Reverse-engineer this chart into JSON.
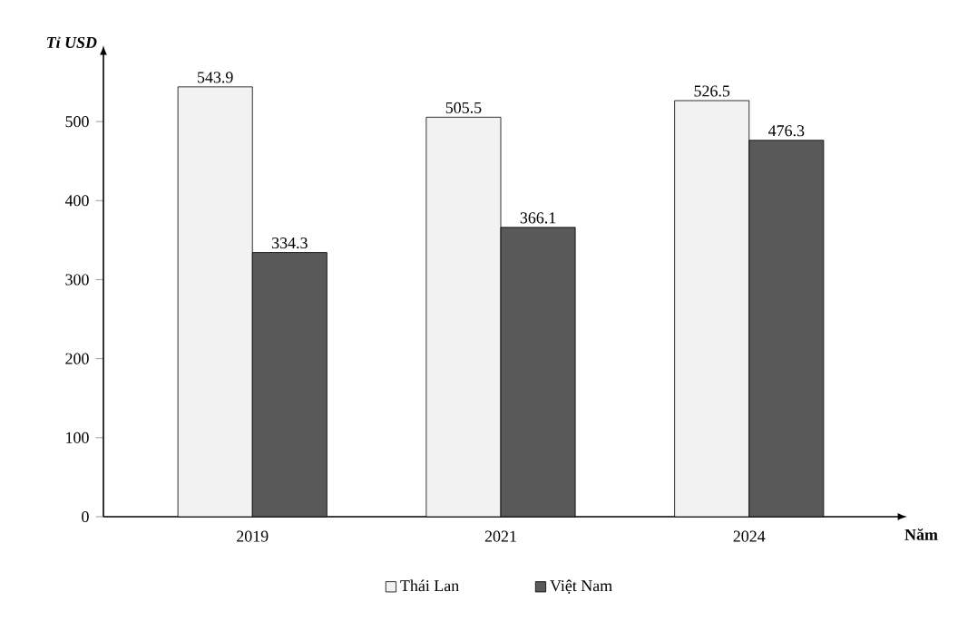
{
  "chart_data": {
    "type": "bar",
    "xlabel": "Năm",
    "ylabel": "Tỉ USD",
    "categories": [
      "2019",
      "2021",
      "2024"
    ],
    "series": [
      {
        "name": "Thái Lan",
        "color": "#f2f2f2",
        "values": [
          543.9,
          505.5,
          526.5
        ]
      },
      {
        "name": "Việt Nam",
        "color": "#595959",
        "values": [
          334.3,
          366.1,
          476.3
        ]
      }
    ],
    "ylim": [
      0,
      585
    ],
    "yticks": [
      0,
      100,
      200,
      300,
      400,
      500
    ],
    "data_labels": true,
    "legend": "bottom",
    "grid": false
  }
}
